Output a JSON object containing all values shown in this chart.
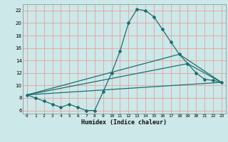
{
  "xlabel": "Humidex (Indice chaleur)",
  "bg_color": "#cce8e8",
  "grid_color": "#e8a0a0",
  "line_color": "#1a7070",
  "xlim": [
    -0.5,
    23.5
  ],
  "ylim": [
    5.5,
    23.0
  ],
  "xticks": [
    0,
    1,
    2,
    3,
    4,
    5,
    6,
    7,
    8,
    9,
    10,
    11,
    12,
    13,
    14,
    15,
    16,
    17,
    18,
    19,
    20,
    21,
    22,
    23
  ],
  "yticks": [
    6,
    8,
    10,
    12,
    14,
    16,
    18,
    20,
    22
  ],
  "line1_x": [
    0,
    1,
    2,
    3,
    4,
    5,
    6,
    7,
    8,
    9,
    10,
    11,
    12,
    13,
    14,
    15,
    16,
    17,
    18,
    19,
    20,
    21,
    22,
    23
  ],
  "line1_y": [
    8.5,
    8.0,
    7.5,
    7.0,
    6.5,
    7.0,
    6.5,
    6.0,
    6.0,
    9.0,
    12.0,
    15.5,
    20.0,
    22.2,
    22.0,
    21.0,
    19.0,
    17.0,
    15.0,
    13.5,
    12.0,
    11.0,
    10.8,
    10.5
  ],
  "line2_x": [
    0,
    23
  ],
  "line2_y": [
    8.5,
    10.5
  ],
  "line3_x": [
    0,
    19,
    23
  ],
  "line3_y": [
    8.5,
    13.5,
    10.5
  ],
  "line4_x": [
    0,
    18,
    23
  ],
  "line4_y": [
    8.5,
    15.0,
    10.5
  ]
}
